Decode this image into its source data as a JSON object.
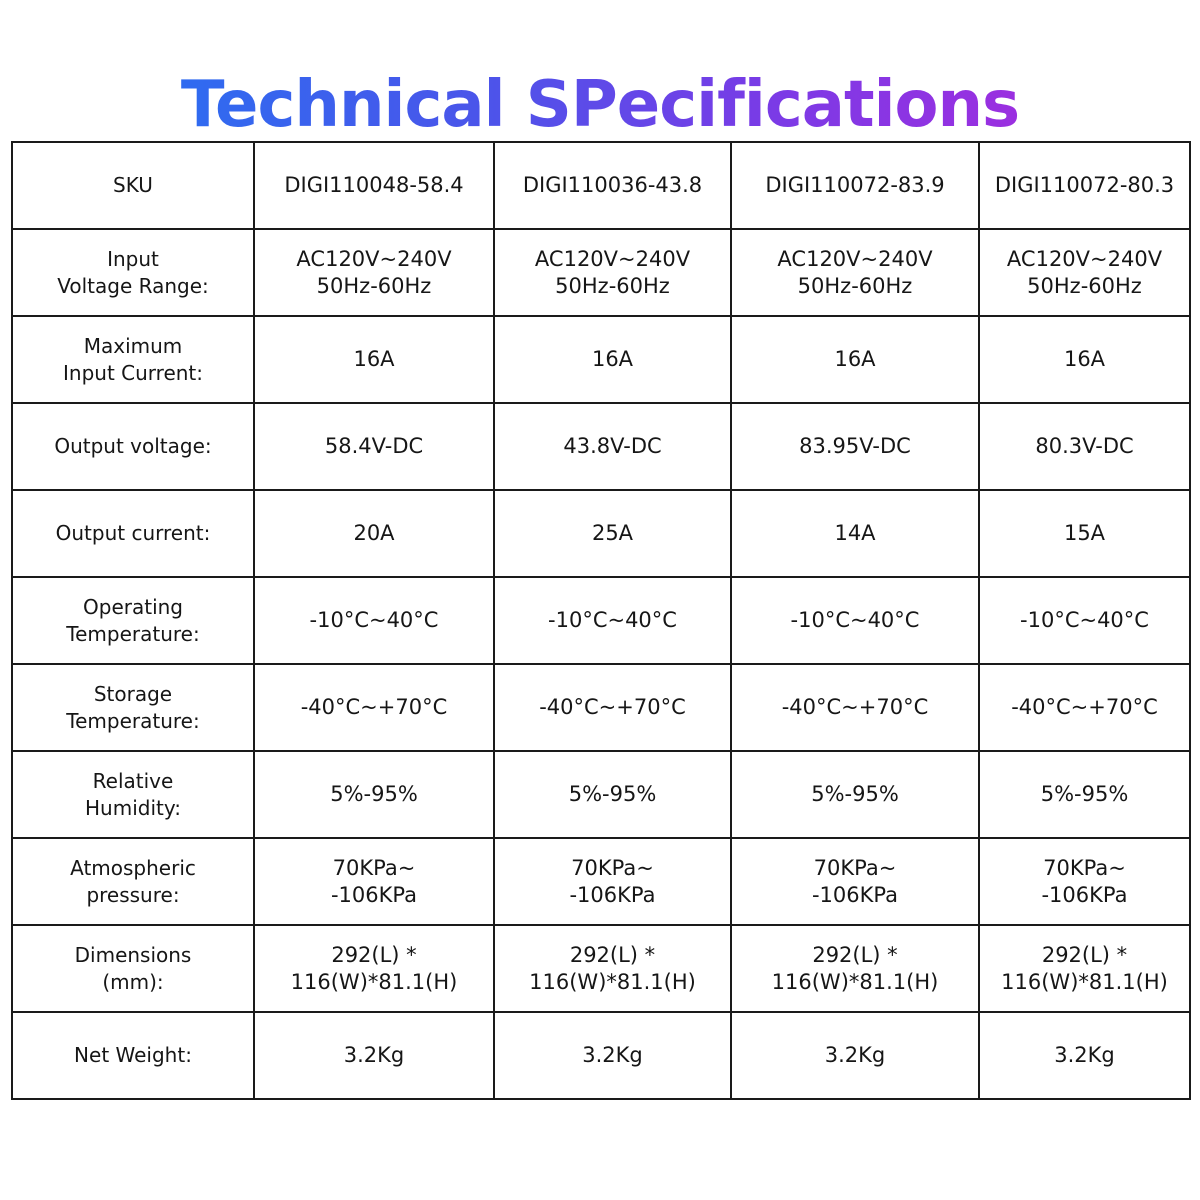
{
  "title": "Technical SPecifications",
  "table": {
    "rows": [
      {
        "label": "SKU",
        "values": [
          "DIGI110048-58.4",
          "DIGI110036-43.8",
          "DIGI110072-83.9",
          "DIGI110072-80.3"
        ]
      },
      {
        "label": "Input\nVoltage Range:",
        "values": [
          "AC120V~240V\n50Hz-60Hz",
          "AC120V~240V\n50Hz-60Hz",
          "AC120V~240V\n50Hz-60Hz",
          "AC120V~240V\n50Hz-60Hz"
        ]
      },
      {
        "label": "Maximum\nInput Current:",
        "values": [
          "16A",
          "16A",
          "16A",
          "16A"
        ]
      },
      {
        "label": "Output voltage:",
        "values": [
          "58.4V-DC",
          "43.8V-DC",
          "83.95V-DC",
          "80.3V-DC"
        ]
      },
      {
        "label": "Output current:",
        "values": [
          "20A",
          "25A",
          "14A",
          "15A"
        ]
      },
      {
        "label": "Operating\nTemperature:",
        "values": [
          "-10°C~40°C",
          "-10°C~40°C",
          "-10°C~40°C",
          "-10°C~40°C"
        ]
      },
      {
        "label": "Storage\nTemperature:",
        "values": [
          "-40°C~+70°C",
          "-40°C~+70°C",
          "-40°C~+70°C",
          "-40°C~+70°C"
        ]
      },
      {
        "label": "Relative\nHumidity:",
        "values": [
          "5%-95%",
          "5%-95%",
          "5%-95%",
          "5%-95%"
        ]
      },
      {
        "label": "Atmospheric\npressure:",
        "values": [
          "70KPa~\n-106KPa",
          "70KPa~\n-106KPa",
          "70KPa~\n-106KPa",
          "70KPa~\n-106KPa"
        ]
      },
      {
        "label": "Dimensions\n(mm):",
        "values": [
          "292(L) *\n116(W)*81.1(H)",
          "292(L) *\n116(W)*81.1(H)",
          "292(L) *\n116(W)*81.1(H)",
          "292(L) *\n116(W)*81.1(H)"
        ]
      },
      {
        "label": "Net Weight:",
        "values": [
          "3.2Kg",
          "3.2Kg",
          "3.2Kg",
          "3.2Kg"
        ]
      }
    ]
  }
}
